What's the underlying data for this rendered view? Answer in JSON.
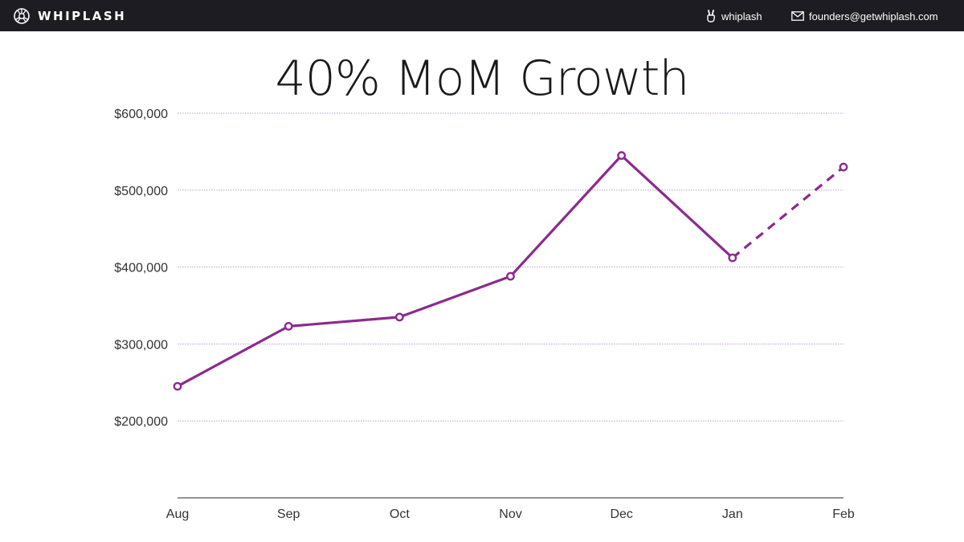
{
  "header": {
    "brand": "WHIPLASH",
    "handle": "whiplash",
    "email": "founders@getwhiplash.com"
  },
  "icons": {
    "brand": "whiplash-logo-icon",
    "handle": "peace-hand-icon",
    "email": "envelope-icon"
  },
  "colors": {
    "header_bg": "#1c1c22",
    "line": "#8c2a8f",
    "grid": "#b9a3c9"
  },
  "chart_data": {
    "type": "line",
    "title": "40% MoM Growth",
    "xlabel": "",
    "ylabel": "",
    "categories": [
      "Aug",
      "Sep",
      "Oct",
      "Nov",
      "Dec",
      "Jan",
      "Feb"
    ],
    "series": [
      {
        "values": [
          245000,
          323000,
          335000,
          388000,
          545000,
          412000,
          530000
        ],
        "line_style": [
          "solid",
          "solid",
          "solid",
          "solid",
          "solid",
          "dashed"
        ]
      }
    ],
    "ylim": [
      100000,
      600000
    ],
    "yticks": [
      200000,
      300000,
      400000,
      500000,
      600000
    ],
    "ytick_labels": [
      "$200,000",
      "$300,000",
      "$400,000",
      "$500,000",
      "$600,000"
    ],
    "grid": true,
    "legend": false
  }
}
